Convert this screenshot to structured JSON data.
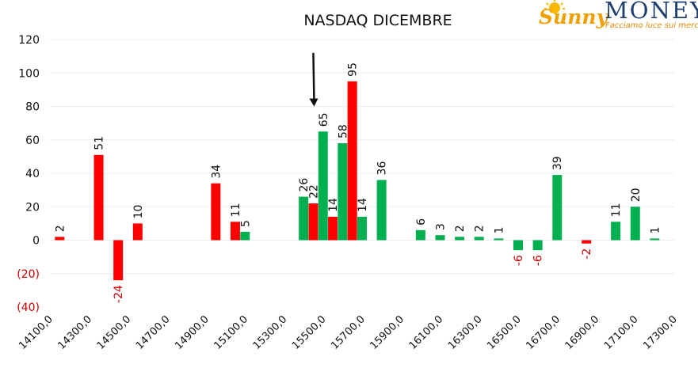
{
  "logo": {
    "script_text": "Sunny",
    "word": "MONEY",
    "tagline": "Facciamo luce sui mercati"
  },
  "colors": {
    "positive": "#00b050",
    "negative": "#ff0000",
    "negative_text": "#cc0000",
    "arrow": "#111111"
  },
  "chart_data": {
    "type": "bar",
    "title": "NASDAQ DICEMBRE",
    "xlabel": "",
    "ylabel": "",
    "ylim": [
      -40,
      120
    ],
    "yticks": [
      120,
      100,
      80,
      60,
      40,
      20,
      0,
      -20,
      -40
    ],
    "ytick_labels": [
      "120",
      "100",
      "80",
      "60",
      "40",
      "20",
      "0",
      "(20)",
      "(40)"
    ],
    "grid": true,
    "legend": "none",
    "xlim": [
      14100,
      17300
    ],
    "xtick_labels": [
      "14100,0",
      "14300,0",
      "14500,0",
      "14700,0",
      "14900,0",
      "15100,0",
      "15300,0",
      "15500,0",
      "15700,0",
      "15900,0",
      "16100,0",
      "16300,0",
      "16500,0",
      "16700,0",
      "16900,0",
      "17100,0",
      "17300,0"
    ],
    "series": [
      {
        "color": "red",
        "points": [
          {
            "x": 14150,
            "y": 2
          },
          {
            "x": 14350,
            "y": 51
          },
          {
            "x": 14450,
            "y": -24
          },
          {
            "x": 14550,
            "y": 10
          },
          {
            "x": 14950,
            "y": 34
          },
          {
            "x": 15050,
            "y": 11
          },
          {
            "x": 15450,
            "y": 22
          },
          {
            "x": 15550,
            "y": 14
          },
          {
            "x": 15650,
            "y": 95
          },
          {
            "x": 16850,
            "y": -2
          }
        ]
      },
      {
        "color": "green",
        "points": [
          {
            "x": 15100,
            "y": 5
          },
          {
            "x": 15400,
            "y": 26
          },
          {
            "x": 15500,
            "y": 65
          },
          {
            "x": 15600,
            "y": 58
          },
          {
            "x": 15700,
            "y": 14
          },
          {
            "x": 15800,
            "y": 36
          },
          {
            "x": 16000,
            "y": 6
          },
          {
            "x": 16100,
            "y": 3
          },
          {
            "x": 16200,
            "y": 2
          },
          {
            "x": 16300,
            "y": 2
          },
          {
            "x": 16400,
            "y": 1
          },
          {
            "x": 16500,
            "y": -6
          },
          {
            "x": 16600,
            "y": -6
          },
          {
            "x": 16700,
            "y": 39
          },
          {
            "x": 17000,
            "y": 11
          },
          {
            "x": 17100,
            "y": 20
          },
          {
            "x": 17200,
            "y": 1
          }
        ]
      }
    ],
    "annotations": [
      {
        "type": "arrow",
        "x": 15450,
        "from_y": 112,
        "to_y": 80
      }
    ]
  }
}
